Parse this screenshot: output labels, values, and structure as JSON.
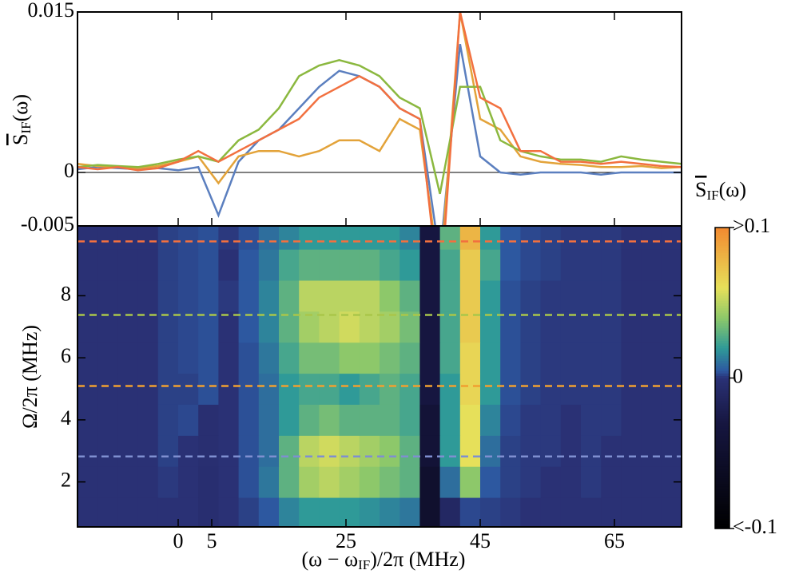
{
  "chart_data": [
    {
      "type": "line",
      "ylabel": {
        "base": "S",
        "sub": "IF",
        "arg": "(ω)"
      },
      "xlim": [
        -15,
        75
      ],
      "ylim": [
        -0.005,
        0.015
      ],
      "yticks": [
        -0.005,
        0,
        0.015
      ],
      "zero_line": true,
      "x": [
        -15,
        -12,
        -9,
        -6,
        -3,
        0,
        3,
        6,
        9,
        12,
        15,
        18,
        21,
        24,
        27,
        30,
        33,
        36,
        39,
        42,
        45,
        48,
        51,
        54,
        57,
        60,
        63,
        66,
        69,
        72,
        75
      ],
      "series": [
        {
          "color": "#5b7fbf",
          "values": [
            0.0003,
            0.0005,
            0.0004,
            0.0003,
            0.0004,
            0.0002,
            0.0005,
            -0.004,
            0.001,
            0.003,
            0.004,
            0.006,
            0.008,
            0.0095,
            0.009,
            0.008,
            0.006,
            0.005,
            -0.008,
            0.012,
            0.0015,
            0,
            -0.0002,
            0,
            0,
            0,
            -0.0002,
            0,
            0,
            0,
            0
          ]
        },
        {
          "color": "#e3a33a",
          "values": [
            0.0008,
            0.0006,
            0.0005,
            0.0004,
            0.0006,
            0.001,
            0.0015,
            -0.001,
            0.0015,
            0.002,
            0.002,
            0.0015,
            0.002,
            0.003,
            0.003,
            0.002,
            0.005,
            0.004,
            -0.01,
            0.015,
            0.005,
            0.004,
            0.0015,
            0.001,
            0.0008,
            0.0007,
            0.0005,
            0.0005,
            0.0006,
            0.0004,
            0.0005
          ]
        },
        {
          "color": "#8bb83f",
          "values": [
            0.0005,
            0.0007,
            0.0006,
            0.0005,
            0.0008,
            0.0012,
            0.0015,
            0.001,
            0.003,
            0.004,
            0.006,
            0.009,
            0.01,
            0.0105,
            0.01,
            0.009,
            0.007,
            0.006,
            -0.002,
            0.008,
            0.008,
            0.003,
            0.002,
            0.0015,
            0.0012,
            0.0012,
            0.001,
            0.0015,
            0.0012,
            0.001,
            0.0008
          ]
        },
        {
          "color": "#f2703f",
          "values": [
            0.0005,
            0.0003,
            0.0005,
            0.0002,
            0.0004,
            0.001,
            0.002,
            0.001,
            0.002,
            0.003,
            0.004,
            0.005,
            0.007,
            0.008,
            0.009,
            0.008,
            0.006,
            0.005,
            -0.012,
            0.015,
            0.007,
            0.006,
            0.002,
            0.002,
            0.001,
            0.001,
            0.0008,
            0.001,
            0.0008,
            0.0006,
            0.0005
          ]
        }
      ]
    },
    {
      "type": "heatmap",
      "xlabel": {
        "pre": "(ω − ω",
        "sub": "IF",
        "post": ")/2π (MHz)"
      },
      "ylabel": "Ω/2π (MHz)",
      "xlim": [
        -15,
        75
      ],
      "ylim": [
        0.55,
        10.25
      ],
      "xticks": [
        0,
        5,
        25,
        45,
        65
      ],
      "yticks": [
        2,
        4,
        6,
        8
      ],
      "xbins": [
        -15,
        -12,
        -9,
        -6,
        -3,
        0,
        3,
        6,
        9,
        12,
        15,
        18,
        21,
        24,
        27,
        30,
        33,
        36,
        39,
        42,
        45,
        48,
        51,
        54,
        57,
        60,
        63,
        66,
        69,
        72,
        75
      ],
      "ybins": [
        0.55,
        1.5,
        2.5,
        3.5,
        4.5,
        5.5,
        6.5,
        7.5,
        8.5,
        9.5,
        10.25
      ],
      "values": [
        [
          0,
          0,
          0,
          0,
          0,
          0,
          -0.003,
          0,
          0.002,
          0.005,
          0.015,
          0.02,
          0.02,
          0.02,
          0.018,
          0.015,
          0.012,
          -0.05,
          -0.01,
          0.003,
          0.002,
          0.001,
          0,
          0,
          0,
          0,
          0,
          0,
          0,
          0
        ],
        [
          0,
          0,
          0,
          0,
          0.001,
          0,
          -0.003,
          0,
          0.004,
          0.012,
          0.03,
          0.045,
          0.05,
          0.045,
          0.04,
          0.035,
          0.03,
          -0.05,
          0.01,
          0.04,
          0.005,
          0.002,
          0.001,
          0,
          0,
          0.001,
          0,
          0,
          0,
          0
        ],
        [
          0,
          0,
          0,
          0,
          0.002,
          0,
          -0.002,
          0,
          0.004,
          0.01,
          0.03,
          0.05,
          0.055,
          0.05,
          0.045,
          0.04,
          0.03,
          -0.04,
          0.02,
          0.06,
          0.01,
          0.002,
          0.001,
          0.001,
          0,
          0.001,
          0,
          0,
          0,
          0
        ],
        [
          0,
          0,
          0,
          0,
          0.002,
          0.003,
          -0.002,
          0,
          0.004,
          0.01,
          0.02,
          0.03,
          0.035,
          0.03,
          0.03,
          0.03,
          0.025,
          -0.04,
          0.02,
          0.06,
          0.015,
          0.003,
          0.001,
          0.001,
          0,
          0.001,
          0.001,
          0,
          0,
          0
        ],
        [
          0,
          0,
          0,
          0,
          0.002,
          0.002,
          0.004,
          0,
          0.004,
          0.01,
          0.02,
          0.025,
          0.025,
          0.02,
          0.025,
          0.03,
          0.025,
          -0.03,
          0.02,
          0.065,
          0.02,
          0.004,
          0.002,
          0.001,
          0.001,
          0.001,
          0.001,
          0,
          0,
          0
        ],
        [
          0,
          0,
          0,
          0,
          0.002,
          0.003,
          0.004,
          0,
          0.004,
          0.012,
          0.025,
          0.035,
          0.035,
          0.04,
          0.04,
          0.035,
          0.03,
          -0.03,
          0.025,
          0.065,
          0.02,
          0.004,
          0.002,
          0.001,
          0.001,
          0.001,
          0.001,
          0,
          0,
          0
        ],
        [
          0,
          0,
          0,
          0,
          0.002,
          0.003,
          0.004,
          0,
          0.005,
          0.015,
          0.03,
          0.045,
          0.05,
          0.055,
          0.05,
          0.045,
          0.035,
          -0.03,
          0.025,
          0.07,
          0.02,
          0.004,
          0.002,
          0.001,
          0.001,
          0.001,
          0.001,
          0,
          0,
          0
        ],
        [
          0,
          0,
          0,
          0,
          0.002,
          0.003,
          0.004,
          0.001,
          0.005,
          0.015,
          0.03,
          0.05,
          0.05,
          0.05,
          0.05,
          0.04,
          0.03,
          -0.03,
          0.025,
          0.07,
          0.02,
          0.004,
          0.002,
          0.001,
          0.001,
          0.001,
          0.001,
          0,
          0,
          0
        ],
        [
          0,
          0,
          0,
          0,
          0.002,
          0.003,
          0.004,
          0,
          0.005,
          0.012,
          0.025,
          0.03,
          0.03,
          0.03,
          0.03,
          0.025,
          0.02,
          -0.03,
          0.025,
          0.07,
          0.025,
          0.005,
          0.003,
          0.002,
          0.001,
          0.001,
          0.001,
          0,
          0,
          0
        ],
        [
          0,
          0,
          0,
          0,
          0.002,
          0.003,
          0.004,
          0.001,
          0.004,
          0.01,
          0.015,
          0.02,
          0.02,
          0.02,
          0.02,
          0.02,
          0.015,
          -0.03,
          0.03,
          0.08,
          0.02,
          0.005,
          0.003,
          0.002,
          0.001,
          0.001,
          0.001,
          0,
          0,
          0
        ]
      ],
      "hlines": [
        {
          "value": 2.82,
          "color": "#7f8fd0"
        },
        {
          "value": 5.09,
          "color": "#f0a030"
        },
        {
          "value": 7.38,
          "color": "#a9c64a"
        },
        {
          "value": 9.75,
          "color": "#f2703f"
        }
      ],
      "colorbar": {
        "label": {
          "base": "S",
          "sub": "IF",
          "arg": "(ω)"
        },
        "clim": [
          -0.1,
          0.1
        ],
        "ticks": [
          {
            "value": 0.1,
            "label": ">0.1"
          },
          0,
          {
            "value": -0.1,
            "label": "<-0.1"
          }
        ],
        "colormap": [
          [
            -0.1,
            "#000000"
          ],
          [
            -0.03,
            "#161640"
          ],
          [
            0,
            "#2a3175"
          ],
          [
            0.005,
            "#2d58a0"
          ],
          [
            0.02,
            "#2f9a98"
          ],
          [
            0.04,
            "#8dc86a"
          ],
          [
            0.06,
            "#e6e05a"
          ],
          [
            0.1,
            "#f28a30"
          ]
        ]
      }
    }
  ]
}
